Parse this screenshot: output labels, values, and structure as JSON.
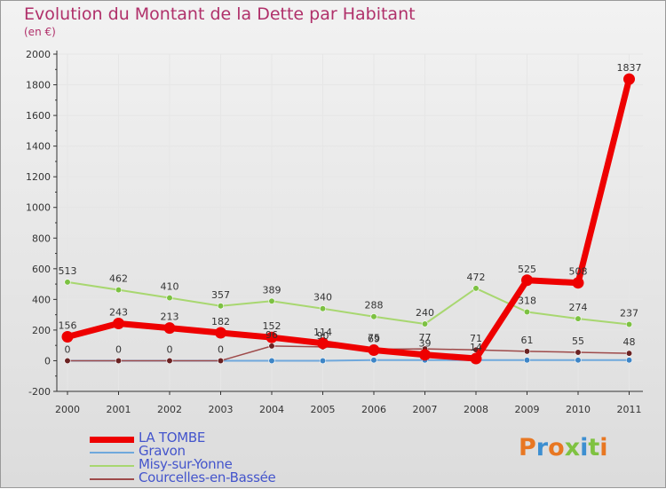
{
  "title": "Evolution du Montant de la Dette par Habitant",
  "subtitle": "(en €)",
  "logo": {
    "text": "Proxiti",
    "colors": [
      "#e87722",
      "#3d8fd1",
      "#e87722",
      "#7fc241",
      "#3d8fd1",
      "#7fc241",
      "#e87722"
    ]
  },
  "chart_data": {
    "type": "line",
    "title": "Evolution du Montant de la Dette par Habitant",
    "ylabel": "(en €)",
    "xlabel": "",
    "categories": [
      "2000",
      "2001",
      "2002",
      "2003",
      "2004",
      "2005",
      "2006",
      "2007",
      "2008",
      "2009",
      "2010",
      "2011"
    ],
    "ylim": [
      -200,
      2000
    ],
    "yticks": [
      -200,
      0,
      200,
      400,
      600,
      800,
      1000,
      1200,
      1400,
      1600,
      1800,
      2000
    ],
    "legend_position": "bottom-left",
    "series": [
      {
        "name": "Gravon",
        "color": "#6fa8dc",
        "marker": "#3d85c6",
        "width": 2,
        "values": [
          0,
          0,
          0,
          0,
          0,
          0,
          4,
          4,
          4,
          4,
          4,
          4
        ],
        "labels": [
          null,
          null,
          null,
          null,
          null,
          null,
          null,
          null,
          null,
          null,
          null,
          null
        ]
      },
      {
        "name": "Misy-sur-Yonne",
        "color": "#a8d770",
        "marker": "#7cc142",
        "width": 2,
        "values": [
          513,
          462,
          410,
          357,
          389,
          340,
          288,
          240,
          472,
          318,
          274,
          237
        ],
        "labels": [
          "513",
          "462",
          "410",
          "357",
          "389",
          "340",
          "288",
          "240",
          "472",
          "318",
          "274",
          "237"
        ]
      },
      {
        "name": "Courcelles-en-Bassée",
        "color": "#9e4a4a",
        "marker": "#6b2222",
        "width": 1.5,
        "values": [
          0,
          0,
          0,
          0,
          96,
          90,
          75,
          77,
          71,
          61,
          55,
          48
        ],
        "labels": [
          "0",
          "0",
          "0",
          "0",
          "96",
          "90",
          "75",
          "77",
          "71",
          "61",
          "55",
          "48"
        ]
      },
      {
        "name": "LA TOMBE",
        "color": "#ee0000",
        "marker": "#ee0000",
        "width": 7,
        "values": [
          156,
          243,
          213,
          182,
          152,
          114,
          69,
          39,
          14,
          525,
          508,
          1837
        ],
        "labels": [
          "156",
          "243",
          "213",
          "182",
          "152",
          "114",
          "69",
          "39",
          "14",
          "525",
          "508",
          "1837"
        ]
      }
    ]
  },
  "legend": [
    {
      "name": "LA TOMBE",
      "color": "#ee0000",
      "thickness": 7
    },
    {
      "name": "Gravon",
      "color": "#6fa8dc",
      "thickness": 2
    },
    {
      "name": "Misy-sur-Yonne",
      "color": "#a8d770",
      "thickness": 2
    },
    {
      "name": "Courcelles-en-Bassée",
      "color": "#9e4a4a",
      "thickness": 2
    }
  ]
}
